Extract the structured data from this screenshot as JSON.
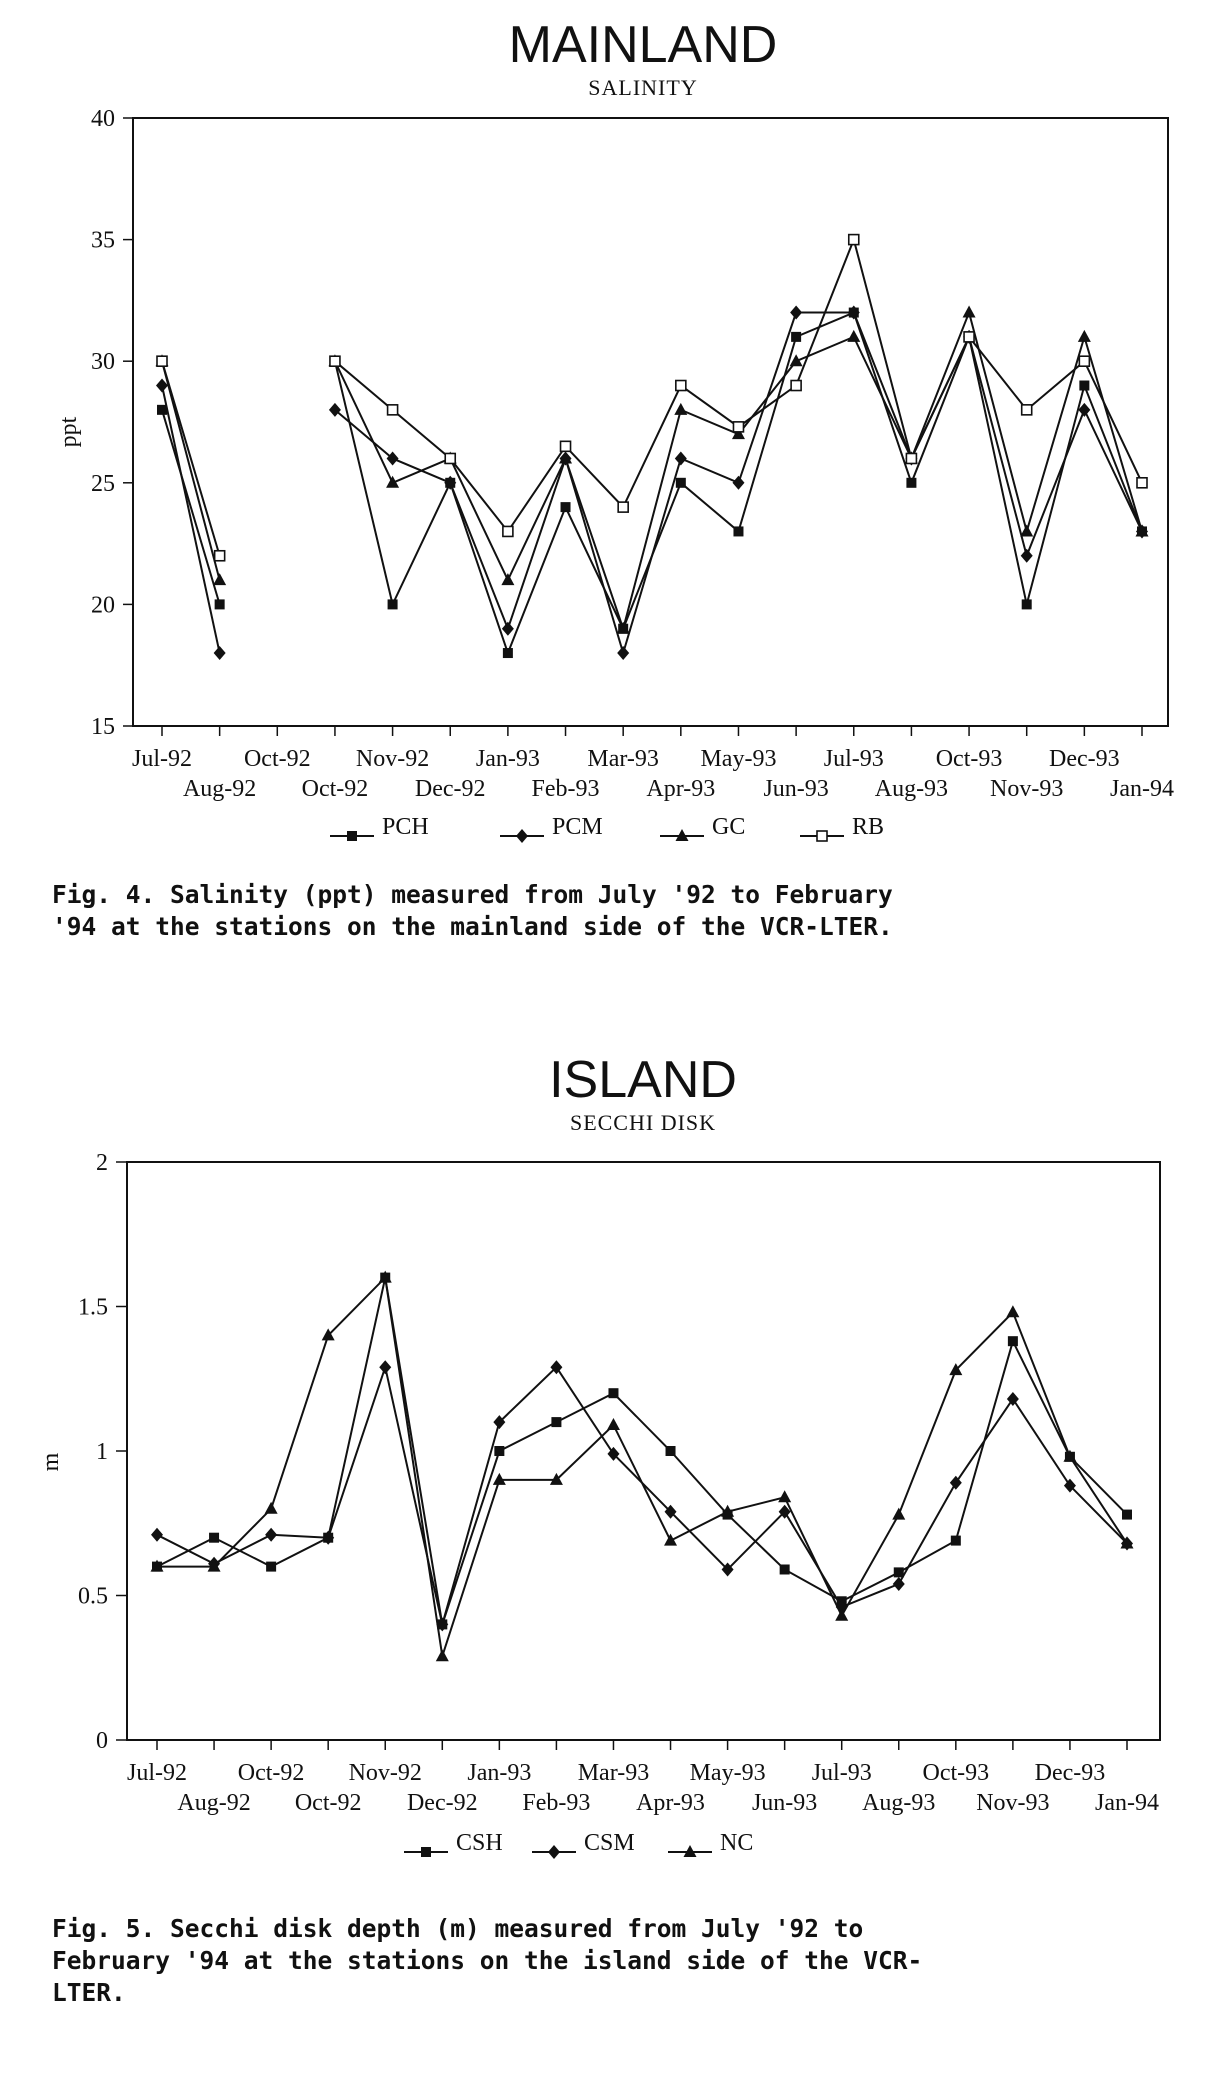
{
  "chart_data": [
    {
      "type": "line",
      "title": "MAINLAND",
      "subtitle": "SALINITY",
      "ylabel": "ppt",
      "xlabel": "",
      "ylim": [
        15,
        40
      ],
      "yticks": [
        "15",
        "20",
        "25",
        "30",
        "35",
        "40"
      ],
      "grid": false,
      "legend_position": "bottom",
      "categories_row1": [
        "Jul-92",
        "Oct-92",
        "Nov-92",
        "Jan-93",
        "Mar-93",
        "May-93",
        "Jul-93",
        "Oct-93",
        "Dec-93"
      ],
      "categories_row2": [
        "Aug-92",
        "Oct-92",
        "Dec-92",
        "Feb-93",
        "Apr-93",
        "Jun-93",
        "Aug-93",
        "Nov-93",
        "Jan-94"
      ],
      "categories": [
        "Jul-92",
        "Aug-92",
        "Oct-92",
        "Oct-92",
        "Nov-92",
        "Dec-92",
        "Jan-93",
        "Feb-93",
        "Mar-93",
        "Apr-93",
        "May-93",
        "Jun-93",
        "Jul-93",
        "Aug-93",
        "Oct-93",
        "Nov-93",
        "Dec-93",
        "Jan-94"
      ],
      "series": [
        {
          "name": "PCH",
          "marker": "square-filled",
          "values": [
            28,
            20,
            null,
            30,
            20,
            25,
            18,
            24,
            19,
            25,
            23,
            31,
            32,
            25,
            31,
            20,
            29,
            23
          ]
        },
        {
          "name": "PCM",
          "marker": "diamond-filled",
          "values": [
            29,
            18,
            null,
            28,
            26,
            25,
            19,
            26,
            18,
            26,
            25,
            32,
            32,
            26,
            31,
            22,
            28,
            23
          ]
        },
        {
          "name": "GC",
          "marker": "triangle-filled",
          "values": [
            30,
            21,
            null,
            30,
            25,
            26,
            21,
            26,
            19,
            28,
            27,
            30,
            31,
            26,
            32,
            23,
            31,
            23
          ]
        },
        {
          "name": "RB",
          "marker": "square-open",
          "values": [
            30,
            22,
            null,
            30,
            28,
            26,
            23,
            26.5,
            24,
            29,
            27.3,
            29,
            35,
            26,
            31,
            28,
            30,
            25
          ]
        }
      ]
    },
    {
      "type": "line",
      "title": "ISLAND",
      "subtitle": "SECCHI DISK",
      "ylabel": "m",
      "xlabel": "",
      "ylim": [
        0,
        2
      ],
      "yticks": [
        "0",
        "0.5",
        "1",
        "1.5",
        "2"
      ],
      "grid": false,
      "legend_position": "bottom",
      "categories_row1": [
        "Jul-92",
        "Oct-92",
        "Nov-92",
        "Jan-93",
        "Mar-93",
        "May-93",
        "Jul-93",
        "Oct-93",
        "Dec-93"
      ],
      "categories_row2": [
        "Aug-92",
        "Oct-92",
        "Dec-92",
        "Feb-93",
        "Apr-93",
        "Jun-93",
        "Aug-93",
        "Nov-93",
        "Jan-94"
      ],
      "categories": [
        "Jul-92",
        "Aug-92",
        "Oct-92",
        "Oct-92",
        "Nov-92",
        "Dec-92",
        "Jan-93",
        "Feb-93",
        "Mar-93",
        "Apr-93",
        "May-93",
        "Jun-93",
        "Jul-93",
        "Aug-93",
        "Oct-93",
        "Nov-93",
        "Dec-93",
        "Jan-94"
      ],
      "series": [
        {
          "name": "CSH",
          "marker": "square-filled",
          "values": [
            0.6,
            0.7,
            0.6,
            0.7,
            1.6,
            0.4,
            1.0,
            1.1,
            1.2,
            1.0,
            0.78,
            0.59,
            0.48,
            0.58,
            0.69,
            1.38,
            0.98,
            0.78
          ]
        },
        {
          "name": "CSM",
          "marker": "diamond-filled",
          "values": [
            0.71,
            0.61,
            0.71,
            0.7,
            1.29,
            0.4,
            1.1,
            1.29,
            0.99,
            0.79,
            0.59,
            0.79,
            0.46,
            0.54,
            0.89,
            1.18,
            0.88,
            0.68
          ]
        },
        {
          "name": "NC",
          "marker": "triangle-filled",
          "values": [
            0.6,
            0.6,
            0.8,
            1.4,
            1.6,
            0.29,
            0.9,
            0.9,
            1.09,
            0.69,
            0.79,
            0.84,
            0.43,
            0.78,
            1.28,
            1.48,
            0.98,
            0.68
          ]
        }
      ]
    }
  ],
  "captions": {
    "fig4_line1": "Fig. 4. Salinity (ppt) measured from July '92 to February",
    "fig4_line2": "'94 at the stations on the mainland side of the VCR-LTER.",
    "fig5_line1": "Fig. 5. Secchi disk depth (m) measured from July '92 to",
    "fig5_line2": "February '94 at the stations on the island side of the VCR-",
    "fig5_line3": "LTER."
  }
}
